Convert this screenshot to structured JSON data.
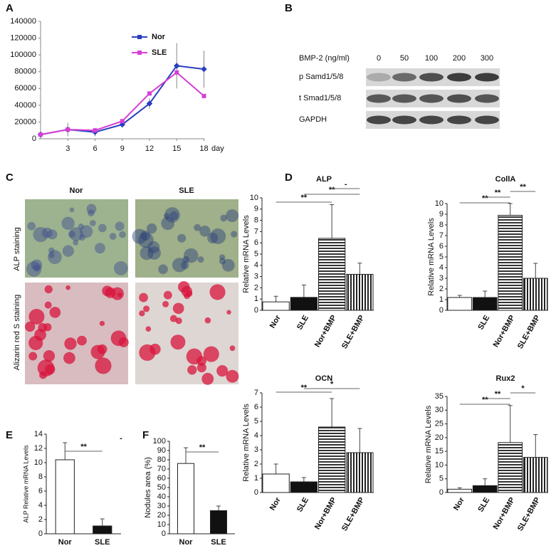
{
  "panel_labels": [
    "A",
    "B",
    "C",
    "D",
    "E",
    "F"
  ],
  "blot": {
    "header": "BMP-2 (ng/ml)",
    "doses": [
      0,
      50,
      100,
      200,
      300
    ],
    "rows": [
      "p Samd1/5/8",
      "t Smad1/5/8",
      "GAPDH"
    ]
  },
  "staining": {
    "columns": [
      "Nor",
      "SLE"
    ],
    "rows": [
      "ALP staining",
      "Alizarin red S staining"
    ]
  },
  "chart_data": [
    {
      "type": "line",
      "x": [
        0,
        3,
        6,
        9,
        12,
        15,
        18
      ],
      "xlim": [
        0,
        20
      ],
      "xticks": [
        3,
        6,
        9,
        12,
        15,
        18
      ],
      "xlabel": "day",
      "ylim": [
        0,
        140000
      ],
      "yticks": [
        0,
        20000,
        40000,
        60000,
        80000,
        100000,
        120000,
        140000
      ],
      "legend": "upper-right",
      "series": [
        {
          "name": "Nor",
          "color": "#2a3fbf",
          "values": [
            5000,
            11000,
            8000,
            17000,
            42000,
            87000,
            83000
          ],
          "errors": [
            null,
            8000,
            5000,
            3000,
            6000,
            27000,
            22000
          ]
        },
        {
          "name": "SLE",
          "color": "#d63fd6",
          "values": [
            5000,
            11000,
            10000,
            21000,
            54000,
            79000,
            51000
          ]
        }
      ]
    },
    {
      "type": "bar",
      "title": "ALP",
      "ylabel": "Relative mRNA Levels",
      "categories": [
        "Nor",
        "SLE",
        "Nor+BMP",
        "SLE+BMP"
      ],
      "values": [
        0.75,
        1.15,
        6.4,
        3.2
      ],
      "errors": [
        0.5,
        1.1,
        3.0,
        1.0
      ],
      "ylim": [
        0,
        10
      ],
      "yticks": [
        0,
        1,
        2,
        3,
        4,
        5,
        6,
        7,
        8,
        9,
        10
      ],
      "bar_styles": [
        "white",
        "black",
        "horizontal",
        "vertical"
      ],
      "annotations": [
        "**",
        "**",
        "-"
      ]
    },
    {
      "type": "bar",
      "title": "CollA",
      "ylabel": "Relative mRNA Levels",
      "categories": [
        null,
        "SLE",
        "Nor+BMP",
        "SLE+BMP"
      ],
      "values": [
        1.2,
        1.2,
        8.9,
        3.0
      ],
      "errors": [
        0.2,
        0.6,
        1.1,
        1.4
      ],
      "ylim": [
        0,
        10
      ],
      "yticks": [
        0,
        1,
        2,
        3,
        4,
        5,
        6,
        7,
        8,
        9,
        10
      ],
      "bar_styles": [
        "white",
        "black",
        "horizontal",
        "vertical"
      ],
      "annotations": [
        "**",
        "**",
        "**"
      ]
    },
    {
      "type": "bar",
      "title": "OCN",
      "ylabel": "Relative mRNA Levels",
      "categories": [
        "Nor",
        "SLE",
        "Nor+BMP",
        "SLE+BMP"
      ],
      "values": [
        1.3,
        0.75,
        4.6,
        2.8
      ],
      "errors": [
        0.7,
        0.3,
        2.0,
        1.7
      ],
      "ylim": [
        0,
        7
      ],
      "yticks": [
        0,
        1,
        2,
        3,
        4,
        5,
        6,
        7
      ],
      "bar_styles": [
        "white",
        "black",
        "horizontal",
        "vertical"
      ],
      "annotations": [
        "**",
        "*"
      ]
    },
    {
      "type": "bar",
      "title": "Rux2",
      "ylabel": "Relative mRNA Levels",
      "categories": [
        "Nor",
        "SLE",
        "Nor+BMP",
        "SLE+BMP"
      ],
      "values": [
        1.2,
        2.5,
        18.2,
        12.8
      ],
      "errors": [
        0.5,
        2.5,
        13.5,
        8.3
      ],
      "ylim": [
        0,
        35
      ],
      "yticks": [
        0,
        5,
        10,
        15,
        20,
        25,
        30,
        35
      ],
      "bar_styles": [
        "white",
        "black",
        "horizontal",
        "vertical"
      ],
      "annotations": [
        "**",
        "**",
        "*"
      ]
    },
    {
      "type": "bar",
      "ylabel": "ALP Relative mRNA Levels",
      "categories": [
        "Nor",
        "SLE"
      ],
      "values": [
        10.4,
        1.1
      ],
      "errors": [
        2.4,
        1.0
      ],
      "ylim": [
        0,
        14
      ],
      "yticks": [
        0,
        2,
        4,
        6,
        8,
        10,
        12,
        14
      ],
      "bar_styles": [
        "white",
        "black"
      ],
      "annotations": [
        "**",
        "-"
      ]
    },
    {
      "type": "bar",
      "ylabel": "Nodules area (%)",
      "categories": [
        "Nor",
        "SLE"
      ],
      "values": [
        76,
        25
      ],
      "errors": [
        17,
        5
      ],
      "ylim": [
        0,
        100
      ],
      "yticks": [
        0,
        10,
        20,
        30,
        40,
        50,
        60,
        70,
        80,
        90,
        100
      ],
      "bar_styles": [
        "white",
        "black"
      ],
      "annotations": [
        "**"
      ]
    }
  ]
}
